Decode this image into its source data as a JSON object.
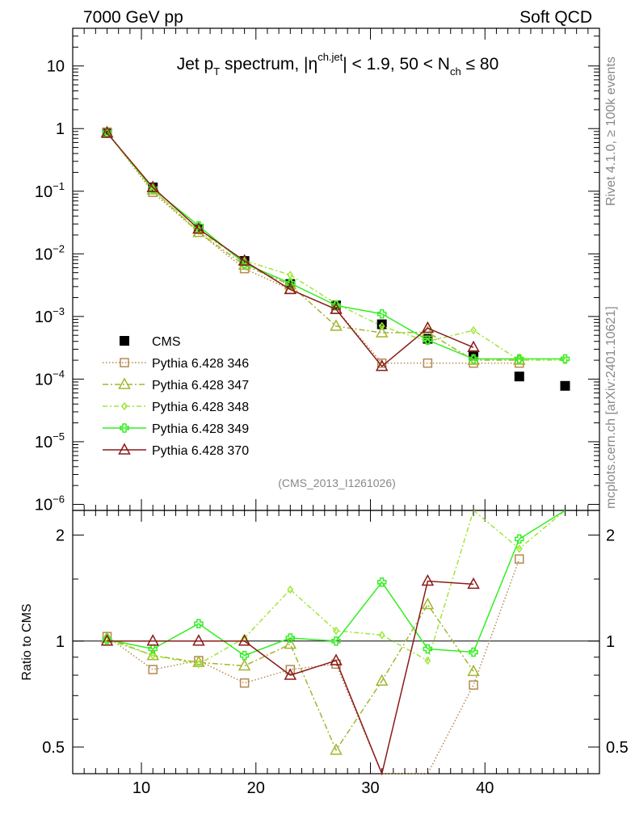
{
  "header": {
    "left_label": "7000 GeV pp",
    "right_label": "Soft QCD"
  },
  "side_text": {
    "rivet": "Rivet 4.1.0, ≥ 100k events",
    "mcplots": "mcplots.cern.ch [arXiv:2401.10621]"
  },
  "chart_data": [
    {
      "type": "line",
      "panel": "main",
      "title": "Jet pT spectrum, |ηch.jet| < 1.9, 50 < Nch ≤ 80",
      "title_parts": {
        "pre": "Jet p",
        "sub_T": "T",
        "mid": " spectrum, |η",
        "sup": "ch.jet",
        "post1": "| < 1.9, 50 < N",
        "sub_ch": "ch",
        "post2": " ≤ 80"
      },
      "watermark": "(CMS_2013_I1261026)",
      "xlim": [
        4,
        50
      ],
      "ylim": [
        8e-07,
        40
      ],
      "yscale": "log",
      "ytick_labels": [
        {
          "value": 10,
          "label": "10"
        },
        {
          "value": 1,
          "label": "1"
        },
        {
          "value": 0.1,
          "base": "10",
          "exp": "−1"
        },
        {
          "value": 0.01,
          "base": "10",
          "exp": "−2"
        },
        {
          "value": 0.001,
          "base": "10",
          "exp": "−3"
        },
        {
          "value": 0.0001,
          "base": "10",
          "exp": "−4"
        },
        {
          "value": 1e-05,
          "base": "10",
          "exp": "−5"
        },
        {
          "value": 1e-06,
          "base": "10",
          "exp": "−6"
        }
      ],
      "legend": [
        "CMS",
        "Pythia 6.428 346",
        "Pythia 6.428 347",
        "Pythia 6.428 348",
        "Pythia 6.428 349",
        "Pythia 6.428 370"
      ],
      "series": [
        {
          "name": "CMS",
          "color": "#000000",
          "marker": "square-filled",
          "dash": "none",
          "x": [
            7,
            11,
            15,
            19,
            23,
            27,
            31,
            35,
            39,
            43,
            47
          ],
          "y": [
            0.85,
            0.115,
            0.025,
            0.0077,
            0.0033,
            0.0015,
            0.00075,
            0.00044,
            0.00024,
            0.00011,
            7.8e-05
          ]
        },
        {
          "name": "Pythia 6.428 346",
          "color": "#b5894e",
          "marker": "square-open",
          "dash": "1.5 2.5",
          "x": [
            7,
            11,
            15,
            19,
            23,
            27,
            31,
            35,
            39,
            43
          ],
          "y": [
            0.88,
            0.096,
            0.022,
            0.0058,
            0.0027,
            0.0013,
            0.00018,
            0.00018,
            0.00018,
            0.00018
          ]
        },
        {
          "name": "Pythia 6.428 347",
          "color": "#a3b52e",
          "marker": "triangle-open",
          "dash": "7 3 2 3",
          "x": [
            7,
            11,
            15,
            19,
            23,
            27,
            31,
            35,
            39,
            43
          ],
          "y": [
            0.87,
            0.105,
            0.022,
            0.0066,
            0.0032,
            0.0007,
            0.00055,
            0.00056,
            0.0002,
            0.0002
          ]
        },
        {
          "name": "Pythia 6.428 348",
          "color": "#a0e63a",
          "marker": "diamond",
          "dash": "6 3 2 3",
          "x": [
            7,
            11,
            15,
            19,
            23,
            27,
            31,
            35,
            39,
            43,
            47
          ],
          "y": [
            0.86,
            0.105,
            0.023,
            0.0078,
            0.0046,
            0.0016,
            0.0007,
            0.0004,
            0.0006,
            0.0002,
            0.0002
          ]
        },
        {
          "name": "Pythia 6.428 349",
          "color": "#33ee22",
          "marker": "cross",
          "dash": "none",
          "x": [
            7,
            11,
            15,
            19,
            23,
            27,
            31,
            35,
            39,
            43,
            47
          ],
          "y": [
            0.86,
            0.11,
            0.028,
            0.007,
            0.0034,
            0.0015,
            0.0011,
            0.00042,
            0.00021,
            0.00021,
            0.00021
          ]
        },
        {
          "name": "Pythia 6.428 370",
          "color": "#8b1a1a",
          "marker": "triangle-open",
          "dash": "none",
          "x": [
            7,
            11,
            15,
            19,
            23,
            27,
            31,
            35,
            39
          ],
          "y": [
            0.85,
            0.115,
            0.025,
            0.0077,
            0.0027,
            0.0013,
            0.00016,
            0.00065,
            0.00032
          ]
        }
      ]
    },
    {
      "type": "line",
      "panel": "ratio",
      "ylabel": "Ratio to CMS",
      "xlim": [
        4,
        50
      ],
      "ylim": [
        0.42,
        2.35
      ],
      "yscale": "log",
      "reference": 1,
      "ytick_labels": [
        {
          "value": 2,
          "label": "2"
        },
        {
          "value": 1,
          "label": "1"
        },
        {
          "value": 0.5,
          "label": "0.5"
        }
      ],
      "xtick_labels": [
        {
          "value": 10,
          "label": "10"
        },
        {
          "value": 20,
          "label": "20"
        },
        {
          "value": 30,
          "label": "30"
        },
        {
          "value": 40,
          "label": "40"
        }
      ],
      "series": [
        {
          "name": "Pythia 6.428 346",
          "color": "#b5894e",
          "marker": "square-open",
          "dash": "1.5 2.5",
          "x": [
            7,
            11,
            15,
            19,
            23,
            27,
            31,
            35,
            39,
            43
          ],
          "y": [
            1.03,
            0.83,
            0.88,
            0.76,
            0.83,
            0.86,
            0.24,
            0.41,
            0.75,
            1.71
          ]
        },
        {
          "name": "Pythia 6.428 347",
          "color": "#a3b52e",
          "marker": "triangle-open",
          "dash": "7 3 2 3",
          "x": [
            7,
            11,
            15,
            19,
            23,
            27,
            31,
            35,
            39
          ],
          "y": [
            1.02,
            0.91,
            0.87,
            0.85,
            0.98,
            0.49,
            0.77,
            1.27,
            0.82
          ]
        },
        {
          "name": "Pythia 6.428 348",
          "color": "#a0e63a",
          "marker": "diamond",
          "dash": "6 3 2 3",
          "x": [
            7,
            11,
            15,
            19,
            23,
            27,
            31,
            35,
            39,
            43,
            47
          ],
          "y": [
            1.01,
            0.91,
            0.86,
            1.02,
            1.4,
            1.07,
            1.04,
            0.88,
            2.5,
            1.83,
            2.7
          ]
        },
        {
          "name": "Pythia 6.428 349",
          "color": "#33ee22",
          "marker": "cross",
          "dash": "none",
          "x": [
            7,
            11,
            15,
            19,
            23,
            27,
            31,
            35,
            39,
            43,
            47
          ],
          "y": [
            1.01,
            0.95,
            1.12,
            0.91,
            1.02,
            1.0,
            1.47,
            0.95,
            0.93,
            1.95,
            2.7
          ]
        },
        {
          "name": "Pythia 6.428 370",
          "color": "#8b1a1a",
          "marker": "triangle-open",
          "dash": "none",
          "x": [
            7,
            11,
            15,
            19,
            23,
            27,
            31,
            35,
            39
          ],
          "y": [
            1.0,
            1.0,
            1.0,
            1.0,
            0.8,
            0.88,
            0.21,
            1.48,
            1.45
          ]
        }
      ]
    }
  ]
}
